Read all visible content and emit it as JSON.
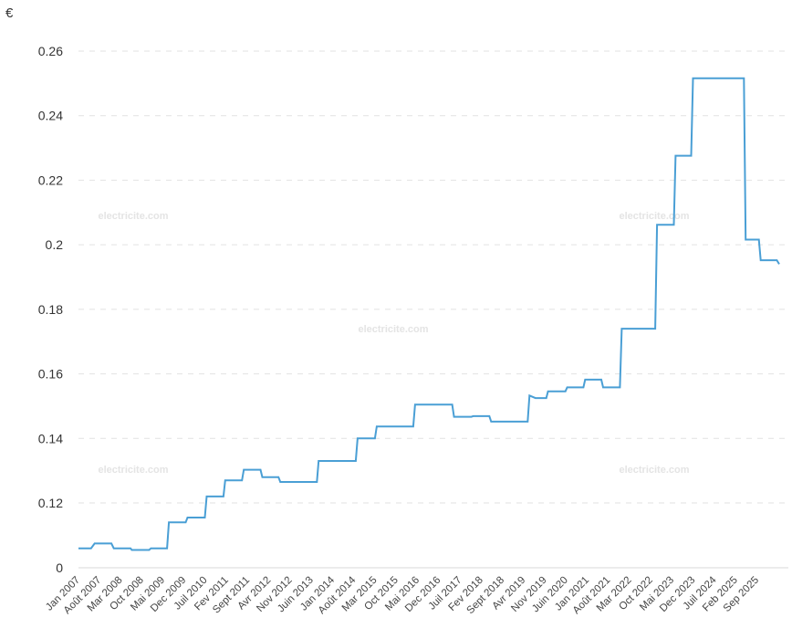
{
  "chart_data": {
    "type": "line",
    "unit": "€",
    "ylim": [
      0.1,
      0.265
    ],
    "axis_break": {
      "bottom_label": "0"
    },
    "yticks": [
      {
        "value": 0,
        "label": "0"
      },
      {
        "value": 0.12,
        "label": "0.12"
      },
      {
        "value": 0.14,
        "label": "0.14"
      },
      {
        "value": 0.16,
        "label": "0.16"
      },
      {
        "value": 0.18,
        "label": "0.18"
      },
      {
        "value": 0.2,
        "label": "0.2"
      },
      {
        "value": 0.22,
        "label": "0.22"
      },
      {
        "value": 0.24,
        "label": "0.24"
      },
      {
        "value": 0.26,
        "label": "0.26"
      }
    ],
    "xticks": [
      "Jan 2007",
      "Août 2007",
      "Mar 2008",
      "Oct 2008",
      "Mai 2009",
      "Dec 2009",
      "Juil 2010",
      "Fev 2011",
      "Sept 2011",
      "Avr 2012",
      "Nov 2012",
      "Juin 2013",
      "Jan 2014",
      "Août 2014",
      "Mar 2015",
      "Oct 2015",
      "Mai 2016",
      "Dec 2016",
      "Juil 2017",
      "Fev 2018",
      "Sept 2018",
      "Avr 2019",
      "Nov 2019",
      "Juin 2020",
      "Jan 2021",
      "Août 2021",
      "Mar 2022",
      "Oct 2022",
      "Mai 2023",
      "Dec 2023",
      "Juil 2024",
      "Feb 2025",
      "Sep 2025"
    ],
    "grid": true,
    "line_color": "#4a9fd5",
    "watermark": "electricite.com",
    "series": [
      {
        "steps": [
          [
            0,
            0.106
          ],
          [
            2.1,
            0.106
          ],
          [
            2.7,
            0.1075
          ],
          [
            5.5,
            0.1075
          ],
          [
            5.9,
            0.106
          ],
          [
            8.7,
            0.106
          ],
          [
            8.9,
            0.1055
          ],
          [
            11.8,
            0.1055
          ],
          [
            12.1,
            0.106
          ],
          [
            14.8,
            0.106
          ],
          [
            15.1,
            0.114
          ],
          [
            17.9,
            0.114
          ],
          [
            18.2,
            0.1155
          ],
          [
            21.1,
            0.1155
          ],
          [
            21.4,
            0.122
          ],
          [
            24.2,
            0.122
          ],
          [
            24.5,
            0.127
          ],
          [
            27.3,
            0.127
          ],
          [
            27.6,
            0.1303
          ],
          [
            30.4,
            0.1303
          ],
          [
            30.7,
            0.128
          ],
          [
            33.4,
            0.128
          ],
          [
            33.7,
            0.1265
          ],
          [
            39.8,
            0.1265
          ],
          [
            40.1,
            0.133
          ],
          [
            46.3,
            0.133
          ],
          [
            46.6,
            0.14
          ],
          [
            49.5,
            0.14
          ],
          [
            49.8,
            0.1437
          ],
          [
            55.9,
            0.1437
          ],
          [
            56.2,
            0.1505
          ],
          [
            62.4,
            0.1505
          ],
          [
            62.7,
            0.1467
          ],
          [
            65.6,
            0.1467
          ],
          [
            65.9,
            0.1469
          ],
          [
            68.6,
            0.1469
          ],
          [
            68.9,
            0.1452
          ],
          [
            75.0,
            0.1452
          ],
          [
            75.3,
            0.1533
          ],
          [
            76.3,
            0.1525
          ],
          [
            78.1,
            0.1525
          ],
          [
            78.4,
            0.1546
          ],
          [
            81.3,
            0.1546
          ],
          [
            81.6,
            0.1558
          ],
          [
            84.3,
            0.1558
          ],
          [
            84.6,
            0.1582
          ],
          [
            87.3,
            0.1582
          ],
          [
            87.6,
            0.1558
          ],
          [
            90.4,
            0.1558
          ],
          [
            90.7,
            0.174
          ],
          [
            96.3,
            0.174
          ],
          [
            96.6,
            0.2062
          ],
          [
            99.4,
            0.2062
          ],
          [
            99.7,
            0.2276
          ],
          [
            102.3,
            0.2276
          ],
          [
            102.6,
            0.2516
          ],
          [
            111.1,
            0.2516
          ],
          [
            111.4,
            0.2016
          ],
          [
            113.6,
            0.2016
          ],
          [
            113.9,
            0.1952
          ],
          [
            116.6,
            0.1952
          ],
          [
            117.0,
            0.194
          ]
        ]
      }
    ]
  }
}
